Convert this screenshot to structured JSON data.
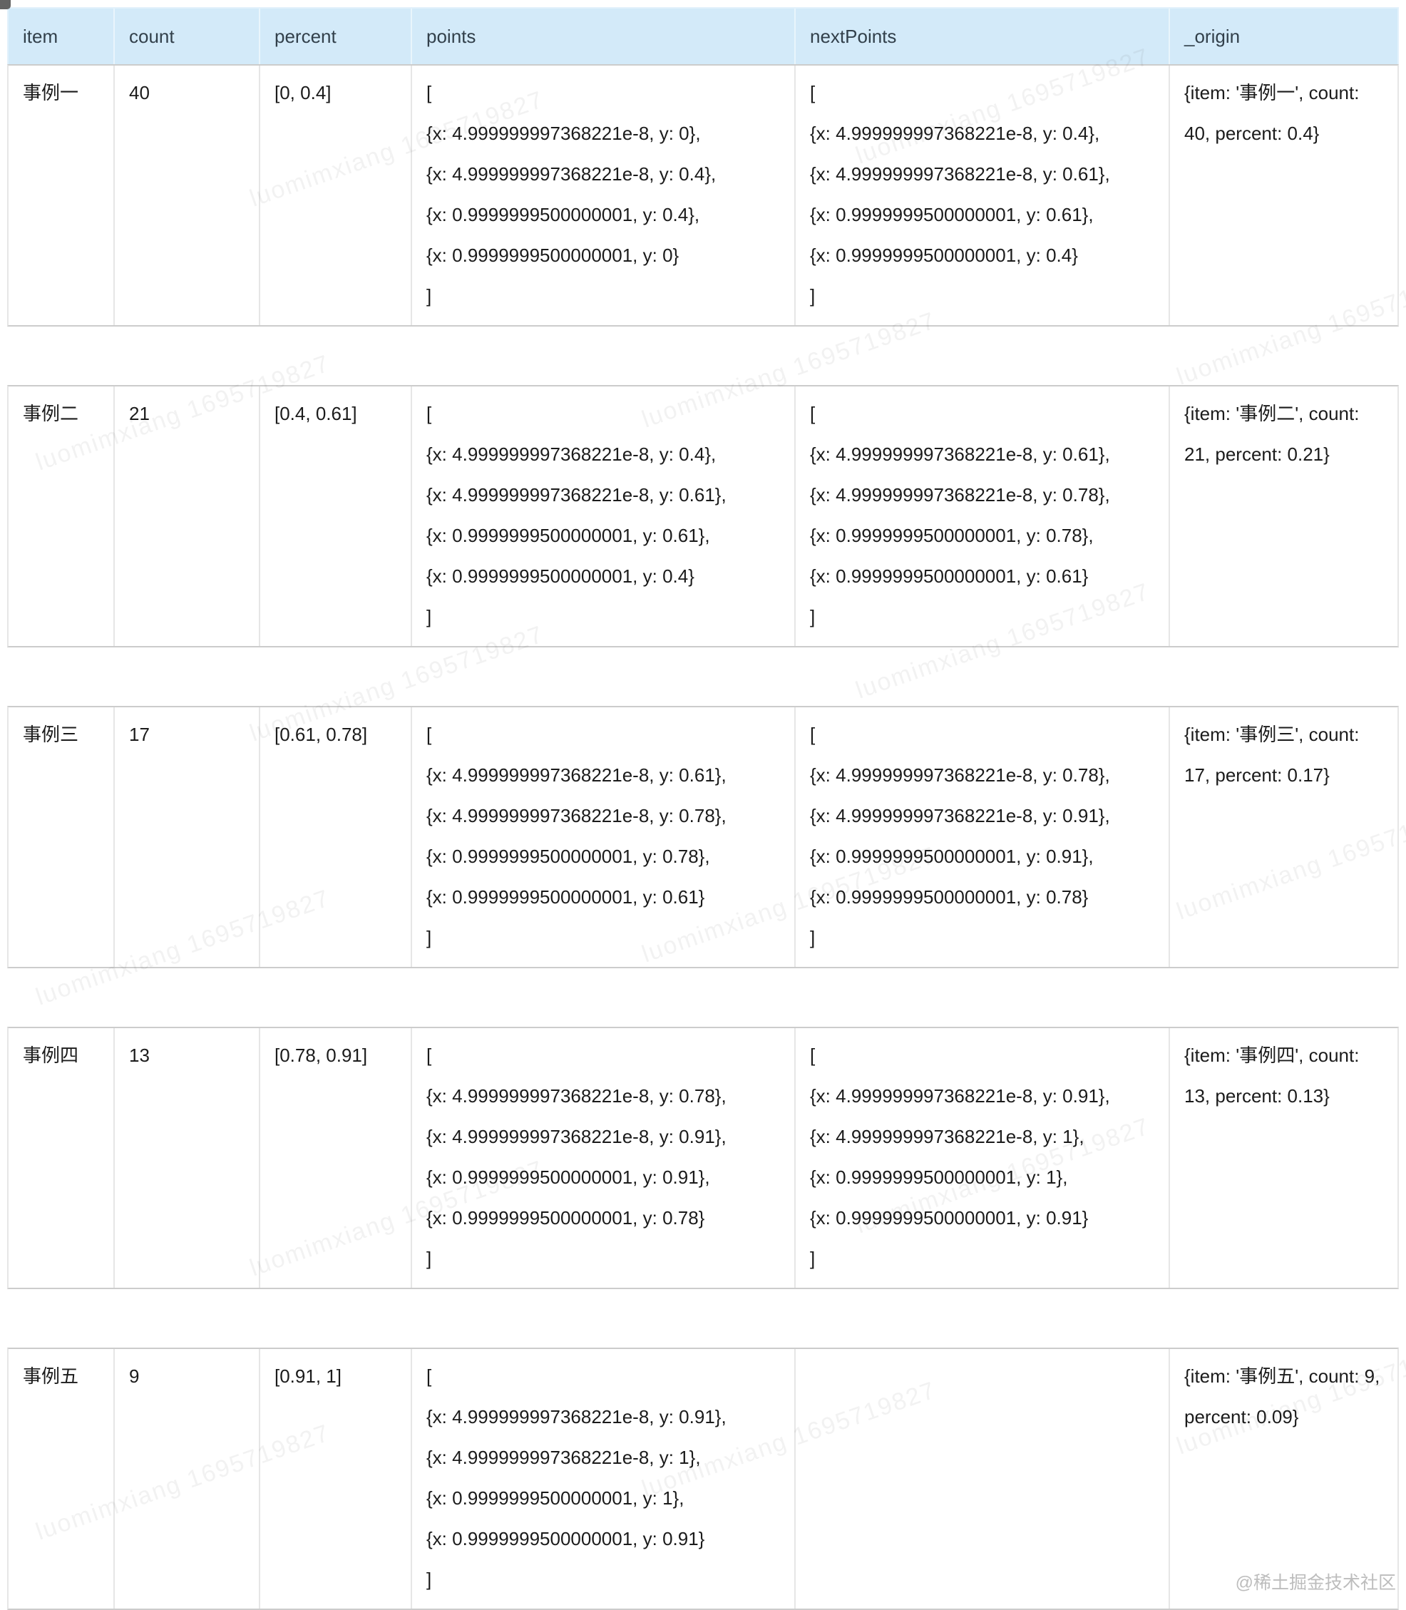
{
  "header": {
    "columns": [
      "item",
      "count",
      "percent",
      "points",
      "nextPoints",
      "_origin"
    ]
  },
  "rows": [
    {
      "item": "事例一",
      "count": "40",
      "percent": "[0, 0.4]",
      "points": "[\n{x: 4.999999997368221e-8, y: 0},\n{x: 4.999999997368221e-8, y: 0.4},\n{x: 0.9999999500000001, y: 0.4},\n{x: 0.9999999500000001, y: 0}\n]",
      "nextPoints": "[\n{x: 4.999999997368221e-8, y: 0.4},\n{x: 4.999999997368221e-8, y: 0.61},\n{x: 0.9999999500000001, y: 0.61},\n{x: 0.9999999500000001, y: 0.4}\n]",
      "origin": "{item: '事例一', count: 40, percent: 0.4}"
    },
    {
      "item": "事例二",
      "count": "21",
      "percent": "[0.4, 0.61]",
      "points": "[\n{x: 4.999999997368221e-8, y: 0.4},\n{x: 4.999999997368221e-8, y: 0.61},\n{x: 0.9999999500000001, y: 0.61},\n{x: 0.9999999500000001, y: 0.4}\n]",
      "nextPoints": "[\n{x: 4.999999997368221e-8, y: 0.61},\n{x: 4.999999997368221e-8, y: 0.78},\n{x: 0.9999999500000001, y: 0.78},\n{x: 0.9999999500000001, y: 0.61}\n]",
      "origin": "{item: '事例二', count: 21, percent: 0.21}"
    },
    {
      "item": "事例三",
      "count": "17",
      "percent": "[0.61, 0.78]",
      "points": "[\n{x: 4.999999997368221e-8, y: 0.61},\n{x: 4.999999997368221e-8, y: 0.78},\n{x: 0.9999999500000001, y: 0.78},\n{x: 0.9999999500000001, y: 0.61}\n]",
      "nextPoints": "[\n{x: 4.999999997368221e-8, y: 0.78},\n{x: 4.999999997368221e-8, y: 0.91},\n{x: 0.9999999500000001, y: 0.91},\n{x: 0.9999999500000001, y: 0.78}\n]",
      "origin": "{item: '事例三', count: 17, percent: 0.17}"
    },
    {
      "item": "事例四",
      "count": "13",
      "percent": "[0.78, 0.91]",
      "points": "[\n{x: 4.999999997368221e-8, y: 0.78},\n{x: 4.999999997368221e-8, y: 0.91},\n{x: 0.9999999500000001, y: 0.91},\n{x: 0.9999999500000001, y: 0.78}\n]",
      "nextPoints": "[\n{x: 4.999999997368221e-8, y: 0.91},\n{x: 4.999999997368221e-8, y: 1},\n{x: 0.9999999500000001, y: 1},\n{x: 0.9999999500000001, y: 0.91}\n]",
      "origin": "{item: '事例四', count: 13, percent: 0.13}"
    },
    {
      "item": "事例五",
      "count": "9",
      "percent": "[0.91, 1]",
      "points": "[\n{x: 4.999999997368221e-8, y: 0.91},\n{x: 4.999999997368221e-8, y: 1},\n{x: 0.9999999500000001, y: 1},\n{x: 0.9999999500000001, y: 0.91}\n]",
      "nextPoints": "",
      "origin": "{item: '事例五', count: 9, percent: 0.09}"
    }
  ],
  "watermark": {
    "diagonal": "luomimxiang 1695719827",
    "credit": "@稀土掘金技术社区"
  }
}
